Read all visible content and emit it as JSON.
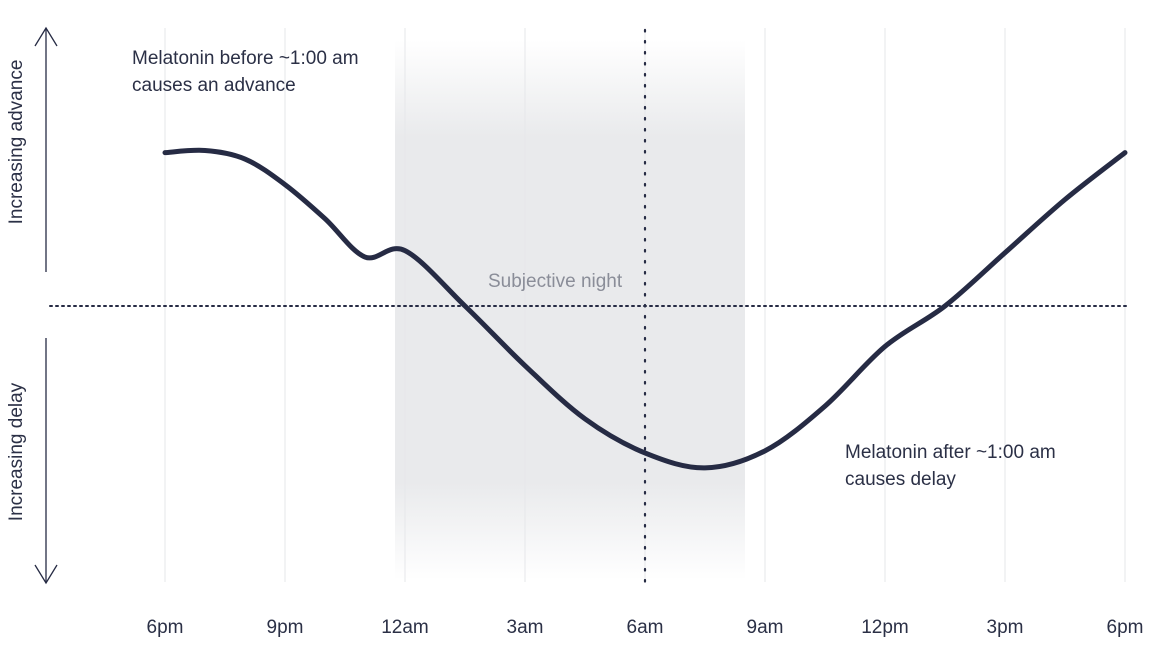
{
  "chart_data": {
    "type": "line",
    "title": "",
    "x_ticks": [
      "6pm",
      "9pm",
      "12am",
      "3am",
      "6am",
      "9am",
      "12pm",
      "3pm",
      "6pm"
    ],
    "x_range_hours": [
      -3,
      24
    ],
    "y_labels": {
      "top": "Increasing advance",
      "bottom": "Increasing delay"
    },
    "y_range": [
      -1.0,
      1.0
    ],
    "zero_line": 0,
    "vertical_marker_at": "6am",
    "shaded_band": {
      "label": "Subjective night",
      "start": "11:45pm",
      "end": "8:30am"
    },
    "series": [
      {
        "values": [
          {
            "x": "6pm",
            "y": 0.72
          },
          {
            "x": "7pm",
            "y": 0.73
          },
          {
            "x": "8pm",
            "y": 0.69
          },
          {
            "x": "9pm",
            "y": 0.57
          },
          {
            "x": "10pm",
            "y": 0.41
          },
          {
            "x": "11pm",
            "y": 0.23
          },
          {
            "x": "12am",
            "y": 0.26
          },
          {
            "x": "1:30am",
            "y": 0.0
          },
          {
            "x": "3am",
            "y": -0.28
          },
          {
            "x": "4:30am",
            "y": -0.53
          },
          {
            "x": "6am",
            "y": -0.69
          },
          {
            "x": "7:30am",
            "y": -0.76
          },
          {
            "x": "9am",
            "y": -0.68
          },
          {
            "x": "10:30am",
            "y": -0.47
          },
          {
            "x": "12pm",
            "y": -0.19
          },
          {
            "x": "1:30pm",
            "y": 0.0
          },
          {
            "x": "3pm",
            "y": 0.25
          },
          {
            "x": "4:30pm",
            "y": 0.5
          },
          {
            "x": "6pm",
            "y": 0.72
          }
        ],
        "color": "#262b44"
      }
    ],
    "annotations": [
      {
        "text_lines": [
          "Melatonin before ~1:00 am",
          "causes an advance"
        ]
      },
      {
        "text_lines": [
          "Melatonin after ~1:00 am",
          "causes delay"
        ]
      }
    ],
    "grid": "vertical",
    "colors": {
      "line": "#262b44",
      "grid": "#e6e7ea",
      "band": "#e9eaec",
      "text": "#2b3046",
      "band_label": "#8a8d98"
    }
  }
}
